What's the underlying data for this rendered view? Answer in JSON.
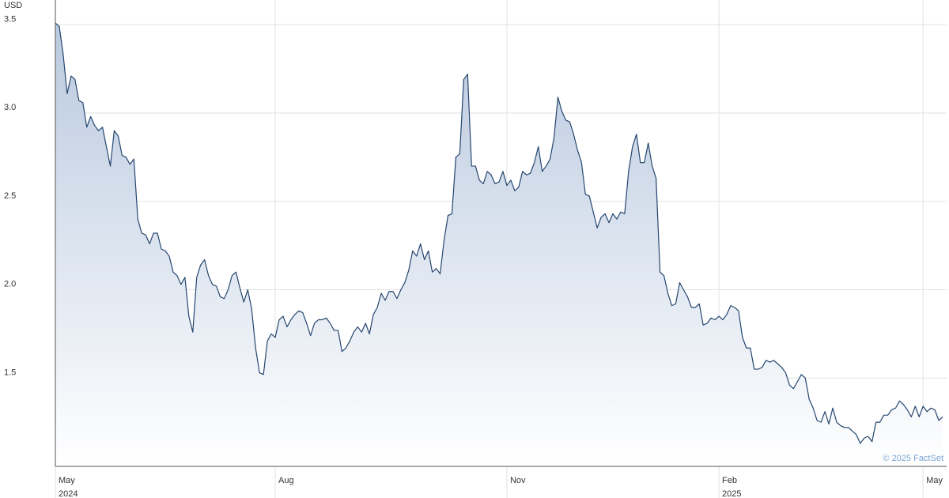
{
  "chart_data": {
    "type": "area",
    "unit_label": "USD",
    "credit": "© 2025 FactSet",
    "color": "#25466f",
    "fill_color": "#b9c9df",
    "grid": true,
    "ylim": [
      1.0,
      3.64
    ],
    "yticks": [
      {
        "value": 1.5,
        "label": "1.5"
      },
      {
        "value": 2,
        "label": "2.0"
      },
      {
        "value": 2.5,
        "label": "2.5"
      },
      {
        "value": 3,
        "label": "3.0"
      },
      3.5
    ],
    "xlim": [
      0,
      227
    ],
    "xticks": [
      {
        "value": 0,
        "label": "May",
        "sublabel": "2024"
      },
      {
        "value": 56,
        "label": "Aug"
      },
      {
        "value": 115,
        "label": "Nov"
      },
      {
        "value": 169,
        "label": "Feb",
        "sublabel": "2025"
      },
      {
        "value": 221,
        "label": "May"
      }
    ],
    "values": [
      3.51,
      3.49,
      3.33,
      3.11,
      3.21,
      3.19,
      3.07,
      3.06,
      2.92,
      2.98,
      2.93,
      2.9,
      2.92,
      2.81,
      2.7,
      2.9,
      2.87,
      2.76,
      2.75,
      2.71,
      2.74,
      2.4,
      2.32,
      2.31,
      2.26,
      2.32,
      2.32,
      2.23,
      2.22,
      2.19,
      2.1,
      2.08,
      2.03,
      2.07,
      1.85,
      1.76,
      2.07,
      2.14,
      2.17,
      2.08,
      2.03,
      2.02,
      1.96,
      1.95,
      2.0,
      2.08,
      2.1,
      2.01,
      1.93,
      2.0,
      1.89,
      1.67,
      1.53,
      1.52,
      1.71,
      1.75,
      1.73,
      1.83,
      1.85,
      1.79,
      1.83,
      1.86,
      1.88,
      1.87,
      1.81,
      1.74,
      1.81,
      1.83,
      1.83,
      1.84,
      1.81,
      1.77,
      1.77,
      1.65,
      1.67,
      1.71,
      1.76,
      1.79,
      1.76,
      1.81,
      1.75,
      1.86,
      1.9,
      1.98,
      1.94,
      1.99,
      1.99,
      1.95,
      2.0,
      2.04,
      2.11,
      2.22,
      2.19,
      2.26,
      2.17,
      2.22,
      2.1,
      2.12,
      2.09,
      2.28,
      2.42,
      2.43,
      2.75,
      2.77,
      3.19,
      3.22,
      2.7,
      2.7,
      2.62,
      2.6,
      2.67,
      2.65,
      2.6,
      2.61,
      2.67,
      2.59,
      2.62,
      2.56,
      2.58,
      2.67,
      2.65,
      2.66,
      2.72,
      2.81,
      2.67,
      2.7,
      2.74,
      2.86,
      3.09,
      3.01,
      2.96,
      2.95,
      2.88,
      2.79,
      2.72,
      2.54,
      2.53,
      2.44,
      2.35,
      2.41,
      2.43,
      2.38,
      2.43,
      2.4,
      2.44,
      2.43,
      2.67,
      2.81,
      2.88,
      2.72,
      2.72,
      2.83,
      2.7,
      2.63,
      2.1,
      2.08,
      1.98,
      1.91,
      1.92,
      2.04,
      2.0,
      1.96,
      1.9,
      1.9,
      1.92,
      1.8,
      1.81,
      1.84,
      1.83,
      1.85,
      1.83,
      1.86,
      1.91,
      1.9,
      1.88,
      1.73,
      1.67,
      1.67,
      1.55,
      1.55,
      1.56,
      1.6,
      1.59,
      1.6,
      1.58,
      1.56,
      1.53,
      1.46,
      1.44,
      1.48,
      1.52,
      1.5,
      1.38,
      1.33,
      1.26,
      1.25,
      1.31,
      1.24,
      1.33,
      1.25,
      1.23,
      1.22,
      1.22,
      1.2,
      1.18,
      1.13,
      1.16,
      1.17,
      1.14,
      1.25,
      1.25,
      1.29,
      1.29,
      1.32,
      1.33,
      1.37,
      1.35,
      1.32,
      1.28,
      1.34,
      1.28,
      1.34,
      1.31,
      1.33,
      1.32,
      1.26,
      1.28
    ]
  }
}
